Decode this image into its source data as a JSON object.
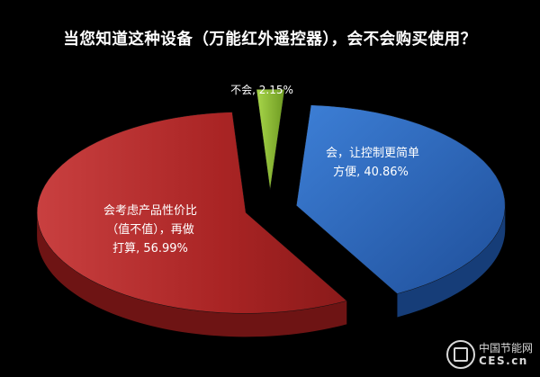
{
  "chart_data": {
    "type": "pie",
    "title": "当您知道这种设备（万能红外遥控器），会不会购买使用？",
    "slices": [
      {
        "label": "会，让控制更简单方便",
        "value": 40.86,
        "display": "会，让控制更简单方便, 40.86%",
        "color": "#2f66b3"
      },
      {
        "label": "会考虑产品性价比（值不值），再做打算",
        "value": 56.99,
        "display": "会考虑产品性价比（值不值），再做打算, 56.99%",
        "color": "#b52c2c"
      },
      {
        "label": "不会",
        "value": 2.15,
        "display": "不会, 2.15%",
        "color": "#8fbf34"
      }
    ]
  },
  "labels": {
    "red_line1": "会考虑产品性价比",
    "red_line2": "（值不值），再做",
    "red_line3": "打算, 56.99%",
    "blue_line1": "会，让控制更简单",
    "blue_line2": "方便, 40.86%",
    "green_line1": "不会, 2.15%"
  },
  "watermark": {
    "cn": "中国节能网",
    "en": "CES.cn"
  }
}
